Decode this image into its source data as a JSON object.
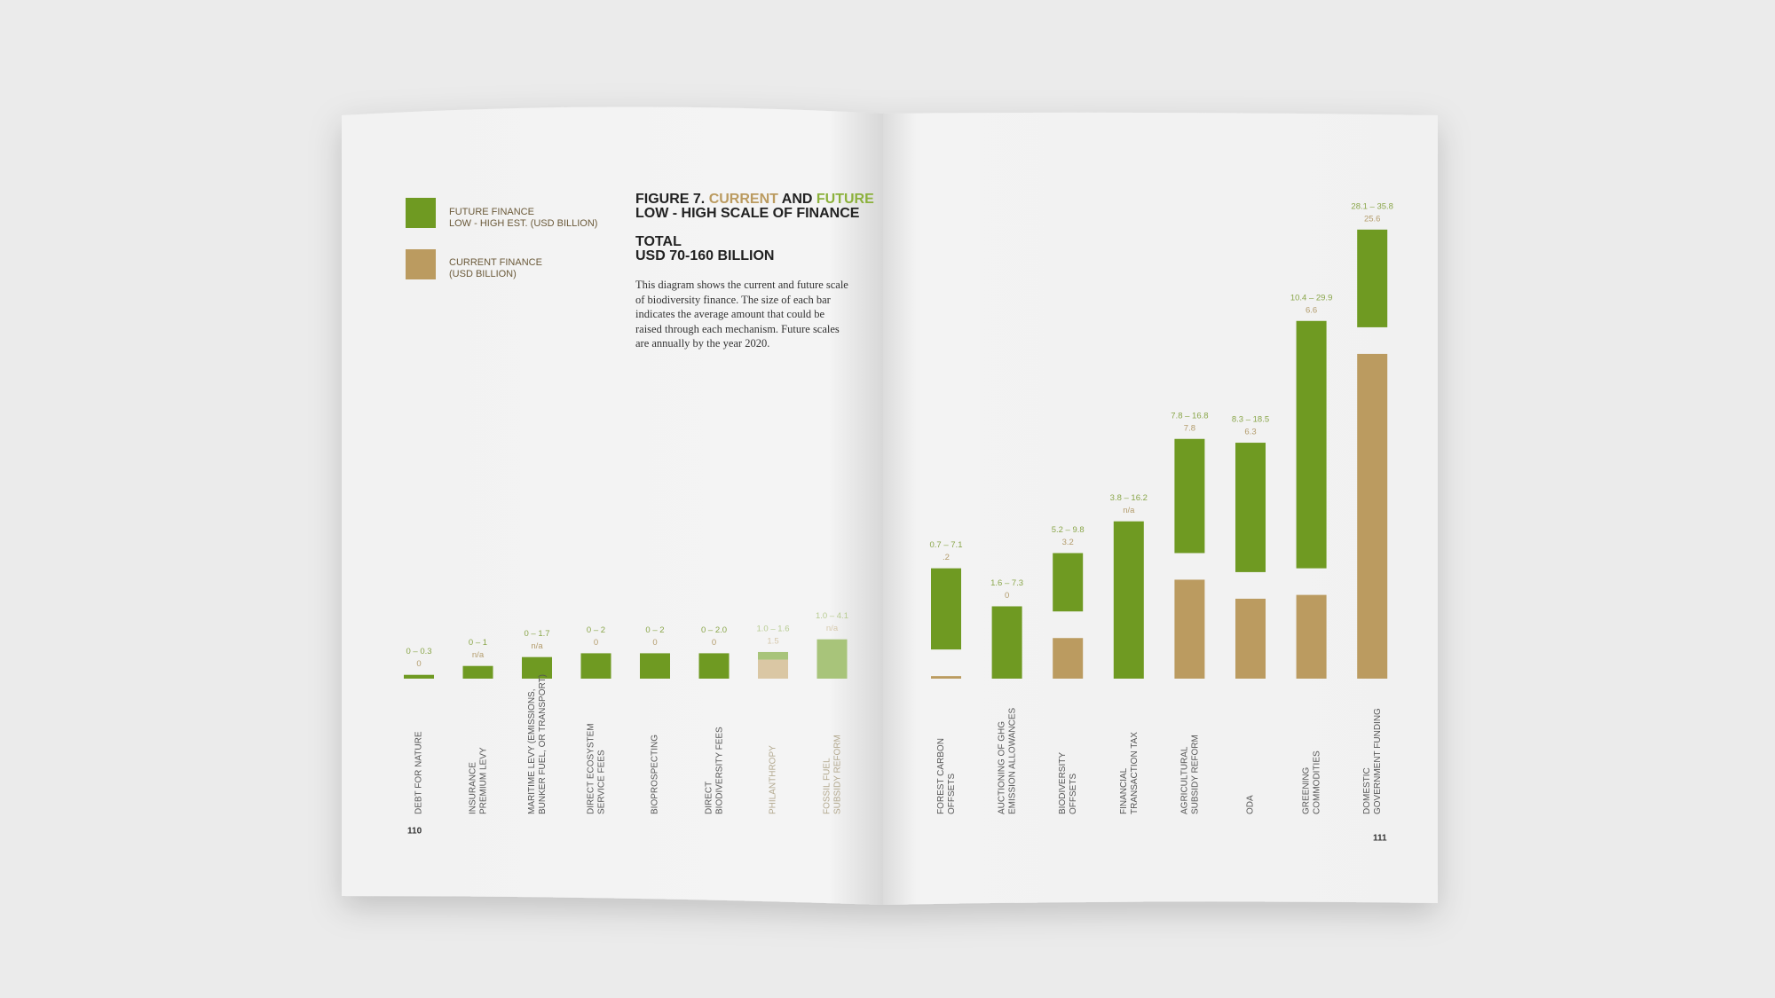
{
  "chart_data": {
    "type": "range-bar",
    "title": {
      "figure": "FIGURE 7.",
      "current": "CURRENT",
      "and": "AND",
      "future": "FUTURE",
      "line2": "LOW - HIGH SCALE OF FINANCE"
    },
    "total": {
      "label": "TOTAL",
      "amount": "USD 70-160 BILLION"
    },
    "description": "This diagram shows the current and future scale of biodiversity finance. The size of each bar indicates the average amount that could be raised through each mechanism. Future scales are annually by the year 2020.",
    "page_numbers": [
      "110",
      "111"
    ],
    "categories": [
      "DEBT FOR NATURE",
      "INSURANCE\nPREMIUM LEVY",
      "MARITIME LEVY (EMISSIONS,\nBUNKER FUEL, OR TRANSPORT)",
      "DIRECT ECOSYSTEM\nSERVICE FEES",
      "BIOPROSPECTING",
      "DIRECT\nBIODIVERSITY FEES",
      "PHILANTHROPY",
      "FOSSIL FUEL\nSUBSIDY REFORM",
      "FOREST CARBON\nOFFSETS",
      "AUCTIONING OF GHG\nEMISSION ALLOWANCES",
      "BIODIVERSITY\nOFFSETS",
      "FINANCIAL\nTRANSACTION TAX",
      "AGRICULTURAL\nSUBSIDY REFORM",
      "ODA",
      "GREENING\nCOMMODITIES",
      "DOMESTIC\nGOVERNMENT FUNDING"
    ],
    "muted": [
      false,
      false,
      false,
      false,
      false,
      false,
      true,
      true,
      false,
      false,
      false,
      false,
      false,
      false,
      false,
      false
    ],
    "series": [
      {
        "name": "FUTURE FINANCE\nLOW - HIGH EST. (USD BILLION)",
        "color": "#6f9a22",
        "muted_color": "#a8c47a",
        "low": [
          0,
          0,
          0,
          0,
          0,
          0,
          1.0,
          1.0,
          0.7,
          1.6,
          5.2,
          3.8,
          7.8,
          8.3,
          10.4,
          28.1
        ],
        "high": [
          0.3,
          1,
          1.7,
          2,
          2,
          2.0,
          1.6,
          4.1,
          7.1,
          7.3,
          9.8,
          16.2,
          16.8,
          18.5,
          29.9,
          35.8
        ],
        "value_labels": [
          "0 – 0.3",
          "0 – 1",
          "0 – 1.7",
          "0 – 2",
          "0 – 2",
          "0 – 2.0",
          "1.0 – 1.6",
          "1.0 – 4.1",
          "0.7 – 7.1",
          "1.6 – 7.3",
          "5.2 – 9.8",
          "3.8 – 16.2",
          "7.8 – 16.8",
          "8.3 – 18.5",
          "10.4 – 29.9",
          "28.1 – 35.8"
        ]
      },
      {
        "name": "CURRENT FINANCE\n(USD BILLION)",
        "color": "#bb9b60",
        "muted_color": "#dac7a4",
        "values": [
          0,
          null,
          null,
          0,
          0,
          0,
          1.5,
          null,
          0.2,
          0,
          3.2,
          null,
          7.8,
          6.3,
          6.6,
          25.6
        ],
        "value_labels": [
          "0",
          "n/a",
          "n/a",
          "0",
          "0",
          "0",
          "1.5",
          "n/a",
          ".2",
          "0",
          "3.2",
          "n/a",
          "7.8",
          "6.3",
          "6.6",
          "25.6"
        ]
      }
    ]
  }
}
